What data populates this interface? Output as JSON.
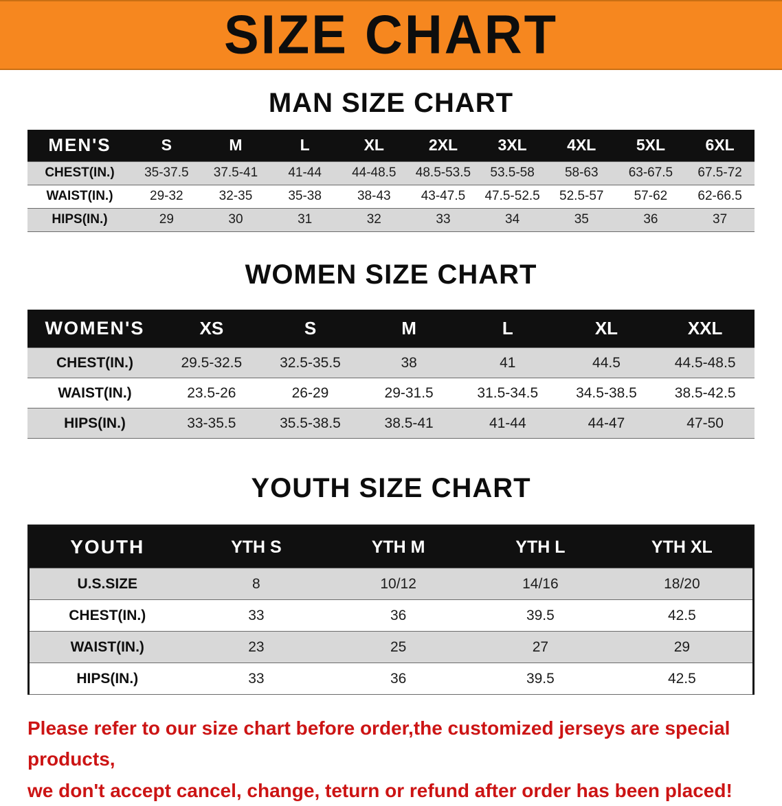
{
  "banner": {
    "title": "SIZE CHART"
  },
  "tables": [
    {
      "section_title": "MAN SIZE CHART",
      "header": [
        "MEN'S",
        "S",
        "M",
        "L",
        "XL",
        "2XL",
        "3XL",
        "4XL",
        "5XL",
        "6XL"
      ],
      "rows": [
        [
          "CHEST(IN.)",
          "35-37.5",
          "37.5-41",
          "41-44",
          "44-48.5",
          "48.5-53.5",
          "53.5-58",
          "58-63",
          "63-67.5",
          "67.5-72"
        ],
        [
          "WAIST(IN.)",
          "29-32",
          "32-35",
          "35-38",
          "38-43",
          "43-47.5",
          "47.5-52.5",
          "52.5-57",
          "57-62",
          "62-66.5"
        ],
        [
          "HIPS(IN.)",
          "29",
          "30",
          "31",
          "32",
          "33",
          "34",
          "35",
          "36",
          "37"
        ]
      ]
    },
    {
      "section_title": "WOMEN SIZE CHART",
      "header": [
        "WOMEN'S",
        "XS",
        "S",
        "M",
        "L",
        "XL",
        "XXL"
      ],
      "rows": [
        [
          "CHEST(IN.)",
          "29.5-32.5",
          "32.5-35.5",
          "38",
          "41",
          "44.5",
          "44.5-48.5"
        ],
        [
          "WAIST(IN.)",
          "23.5-26",
          "26-29",
          "29-31.5",
          "31.5-34.5",
          "34.5-38.5",
          "38.5-42.5"
        ],
        [
          "HIPS(IN.)",
          "33-35.5",
          "35.5-38.5",
          "38.5-41",
          "41-44",
          "44-47",
          "47-50"
        ]
      ]
    },
    {
      "section_title": "YOUTH SIZE CHART",
      "header": [
        "YOUTH",
        "YTH S",
        "YTH M",
        "YTH L",
        "YTH XL"
      ],
      "rows": [
        [
          "U.S.SIZE",
          "8",
          "10/12",
          "14/16",
          "18/20"
        ],
        [
          "CHEST(IN.)",
          "33",
          "36",
          "39.5",
          "42.5"
        ],
        [
          "WAIST(IN.)",
          "23",
          "25",
          "27",
          "29"
        ],
        [
          "HIPS(IN.)",
          "33",
          "36",
          "39.5",
          "42.5"
        ]
      ]
    }
  ],
  "footer": {
    "line1": "Please refer to our size chart before order,the customized jerseys are special products,",
    "line2": "we don't accept cancel, change, teturn or refund after order has been placed!"
  },
  "colors": {
    "banner_bg": "#F6871F",
    "header_bg": "#101010",
    "row_alt_bg": "#D8D8D8",
    "footer_text": "#CC1414"
  }
}
